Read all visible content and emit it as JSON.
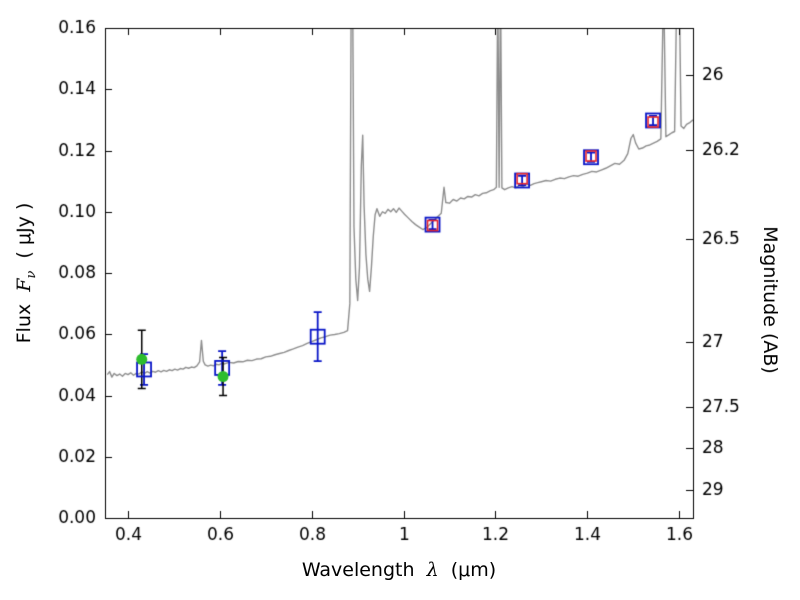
{
  "figure": {
    "xlabel": {
      "word": "Wavelength",
      "symbol": "λ",
      "unit": "(μm)"
    },
    "ylabel_left": {
      "word": "Flux",
      "symbol": "F",
      "sub": "ν",
      "unit": "( μJy )"
    },
    "ylabel_right": "Magnitude (AB)",
    "background": "#ffffff"
  },
  "chart_data": {
    "type": "line",
    "title": "",
    "xlabel": "Wavelength λ (μm)",
    "ylabel": "Flux Fν ( μJy )",
    "y2label": "Magnitude (AB)",
    "xlim": [
      0.35,
      1.63
    ],
    "ylim": [
      0.0,
      0.16
    ],
    "grid": false,
    "legend": "none",
    "x_ticks": {
      "values": [
        0.4,
        0.6,
        0.8,
        1.0,
        1.2,
        1.4,
        1.6
      ],
      "labels": [
        "0.4",
        "0.6",
        "0.8",
        "1",
        "1.2",
        "1.4",
        "1.6"
      ]
    },
    "y_ticks": {
      "values": [
        0.0,
        0.02,
        0.04,
        0.06,
        0.08,
        0.1,
        0.12,
        0.14,
        0.16
      ],
      "labels": [
        "0.00",
        "0.02",
        "0.04",
        "0.06",
        "0.08",
        "0.10",
        "0.12",
        "0.14",
        "0.16"
      ]
    },
    "y2_ticks": {
      "values": [
        26,
        26.2,
        26.5,
        27,
        27.5,
        28,
        29
      ],
      "labels": [
        "26",
        "26.2",
        "26.5",
        "27",
        "27.5",
        "28",
        "29"
      ],
      "ab_zeropoint": 23.9
    },
    "colors": {
      "spectrum": "#8e8e8e",
      "blue": "#0a16c8",
      "red": "#e8262d",
      "green": "#2dbd2d",
      "axis": "#000000",
      "background": "#ffffff"
    },
    "series": [
      {
        "name": "model-spectrum",
        "kind": "line",
        "color": "#8e8e8e",
        "width": 1.4,
        "points": [
          [
            0.355,
            0.0468
          ],
          [
            0.36,
            0.0478
          ],
          [
            0.365,
            0.046
          ],
          [
            0.37,
            0.0472
          ],
          [
            0.376,
            0.0465
          ],
          [
            0.382,
            0.047
          ],
          [
            0.388,
            0.0463
          ],
          [
            0.394,
            0.0472
          ],
          [
            0.4,
            0.0468
          ],
          [
            0.406,
            0.0474
          ],
          [
            0.412,
            0.0466
          ],
          [
            0.418,
            0.0472
          ],
          [
            0.424,
            0.047
          ],
          [
            0.43,
            0.0477
          ],
          [
            0.436,
            0.0472
          ],
          [
            0.442,
            0.0478
          ],
          [
            0.448,
            0.0473
          ],
          [
            0.454,
            0.0479
          ],
          [
            0.46,
            0.0476
          ],
          [
            0.466,
            0.0481
          ],
          [
            0.472,
            0.0477
          ],
          [
            0.478,
            0.0482
          ],
          [
            0.484,
            0.0479
          ],
          [
            0.49,
            0.0484
          ],
          [
            0.496,
            0.0481
          ],
          [
            0.502,
            0.0486
          ],
          [
            0.508,
            0.0483
          ],
          [
            0.514,
            0.0488
          ],
          [
            0.52,
            0.0486
          ],
          [
            0.526,
            0.0492
          ],
          [
            0.532,
            0.0489
          ],
          [
            0.538,
            0.0493
          ],
          [
            0.544,
            0.0491
          ],
          [
            0.55,
            0.0497
          ],
          [
            0.556,
            0.051
          ],
          [
            0.56,
            0.058
          ],
          [
            0.564,
            0.0512
          ],
          [
            0.568,
            0.05
          ],
          [
            0.574,
            0.0496
          ],
          [
            0.58,
            0.0499
          ],
          [
            0.586,
            0.0497
          ],
          [
            0.592,
            0.0502
          ],
          [
            0.598,
            0.05
          ],
          [
            0.604,
            0.0505
          ],
          [
            0.61,
            0.0503
          ],
          [
            0.62,
            0.0508
          ],
          [
            0.63,
            0.0506
          ],
          [
            0.64,
            0.0511
          ],
          [
            0.65,
            0.051
          ],
          [
            0.66,
            0.0515
          ],
          [
            0.67,
            0.0514
          ],
          [
            0.68,
            0.0519
          ],
          [
            0.69,
            0.052
          ],
          [
            0.7,
            0.0526
          ],
          [
            0.71,
            0.0528
          ],
          [
            0.72,
            0.0533
          ],
          [
            0.73,
            0.0537
          ],
          [
            0.74,
            0.0541
          ],
          [
            0.75,
            0.0547
          ],
          [
            0.76,
            0.0552
          ],
          [
            0.77,
            0.0558
          ],
          [
            0.78,
            0.0563
          ],
          [
            0.79,
            0.057
          ],
          [
            0.8,
            0.0576
          ],
          [
            0.81,
            0.0582
          ],
          [
            0.82,
            0.0588
          ],
          [
            0.83,
            0.0592
          ],
          [
            0.84,
            0.0597
          ],
          [
            0.85,
            0.0599
          ],
          [
            0.86,
            0.0602
          ],
          [
            0.87,
            0.0606
          ],
          [
            0.878,
            0.0612
          ],
          [
            0.883,
            0.07
          ],
          [
            0.886,
            0.175
          ],
          [
            0.889,
            0.175
          ],
          [
            0.892,
            0.095
          ],
          [
            0.896,
            0.078
          ],
          [
            0.9,
            0.071
          ],
          [
            0.904,
            0.082
          ],
          [
            0.908,
            0.115
          ],
          [
            0.911,
            0.125
          ],
          [
            0.914,
            0.102
          ],
          [
            0.918,
            0.086
          ],
          [
            0.922,
            0.078
          ],
          [
            0.926,
            0.074
          ],
          [
            0.93,
            0.082
          ],
          [
            0.934,
            0.092
          ],
          [
            0.938,
            0.099
          ],
          [
            0.942,
            0.101
          ],
          [
            0.948,
            0.0985
          ],
          [
            0.954,
            0.1
          ],
          [
            0.96,
            0.0995
          ],
          [
            0.966,
            0.1008
          ],
          [
            0.972,
            0.1
          ],
          [
            0.978,
            0.101
          ],
          [
            0.984,
            0.0998
          ],
          [
            0.99,
            0.1012
          ],
          [
            0.996,
            0.1002
          ],
          [
            1.002,
            0.0992
          ],
          [
            1.01,
            0.098
          ],
          [
            1.018,
            0.0968
          ],
          [
            1.026,
            0.0958
          ],
          [
            1.034,
            0.095
          ],
          [
            1.042,
            0.0942
          ],
          [
            1.05,
            0.0948
          ],
          [
            1.058,
            0.096
          ],
          [
            1.066,
            0.0972
          ],
          [
            1.074,
            0.0984
          ],
          [
            1.082,
            0.0995
          ],
          [
            1.088,
            0.108
          ],
          [
            1.092,
            0.103
          ],
          [
            1.1,
            0.1028
          ],
          [
            1.108,
            0.104
          ],
          [
            1.116,
            0.1035
          ],
          [
            1.124,
            0.1045
          ],
          [
            1.132,
            0.1042
          ],
          [
            1.14,
            0.105
          ],
          [
            1.148,
            0.1048
          ],
          [
            1.156,
            0.1056
          ],
          [
            1.164,
            0.1052
          ],
          [
            1.172,
            0.106
          ],
          [
            1.18,
            0.1062
          ],
          [
            1.188,
            0.1068
          ],
          [
            1.196,
            0.1072
          ],
          [
            1.202,
            0.108
          ],
          [
            1.205,
            0.175
          ],
          [
            1.208,
            0.108
          ],
          [
            1.211,
            0.175
          ],
          [
            1.214,
            0.1078
          ],
          [
            1.22,
            0.1072
          ],
          [
            1.228,
            0.1078
          ],
          [
            1.236,
            0.1082
          ],
          [
            1.244,
            0.1078
          ],
          [
            1.252,
            0.1086
          ],
          [
            1.26,
            0.1082
          ],
          [
            1.268,
            0.109
          ],
          [
            1.276,
            0.1086
          ],
          [
            1.284,
            0.1092
          ],
          [
            1.292,
            0.1095
          ],
          [
            1.3,
            0.1098
          ],
          [
            1.31,
            0.1102
          ],
          [
            1.32,
            0.11
          ],
          [
            1.33,
            0.1106
          ],
          [
            1.34,
            0.111
          ],
          [
            1.35,
            0.1108
          ],
          [
            1.36,
            0.1114
          ],
          [
            1.37,
            0.1118
          ],
          [
            1.38,
            0.1116
          ],
          [
            1.39,
            0.1122
          ],
          [
            1.4,
            0.1126
          ],
          [
            1.41,
            0.1132
          ],
          [
            1.42,
            0.113
          ],
          [
            1.43,
            0.1136
          ],
          [
            1.44,
            0.1142
          ],
          [
            1.45,
            0.115
          ],
          [
            1.46,
            0.1158
          ],
          [
            1.47,
            0.1155
          ],
          [
            1.48,
            0.1168
          ],
          [
            1.488,
            0.119
          ],
          [
            1.495,
            0.124
          ],
          [
            1.5,
            0.1252
          ],
          [
            1.505,
            0.1225
          ],
          [
            1.512,
            0.1205
          ],
          [
            1.52,
            0.1208
          ],
          [
            1.528,
            0.1215
          ],
          [
            1.536,
            0.1218
          ],
          [
            1.544,
            0.1224
          ],
          [
            1.552,
            0.123
          ],
          [
            1.56,
            0.1238
          ],
          [
            1.566,
            0.175
          ],
          [
            1.571,
            0.1245
          ],
          [
            1.578,
            0.1252
          ],
          [
            1.584,
            0.1258
          ],
          [
            1.59,
            0.1262
          ],
          [
            1.595,
            0.175
          ],
          [
            1.6,
            0.175
          ],
          [
            1.604,
            0.128
          ],
          [
            1.61,
            0.1272
          ],
          [
            1.616,
            0.1285
          ],
          [
            1.622,
            0.129
          ],
          [
            1.63,
            0.13
          ]
        ]
      },
      {
        "name": "photometry-blue-squares",
        "kind": "square-open",
        "color": "#0a16c8",
        "err_color": "#0a16c8",
        "size": 14,
        "line_width": 1.8,
        "x": [
          0.435,
          0.605,
          0.813,
          1.063,
          1.258,
          1.408,
          1.543
        ],
        "y": [
          0.0485,
          0.049,
          0.0592,
          0.0958,
          0.1102,
          0.1178,
          0.1298
        ],
        "yerr": [
          0.005,
          0.0055,
          0.008,
          0.0015,
          0.0015,
          0.0015,
          0.0015
        ]
      },
      {
        "name": "photometry-red-squares",
        "kind": "square-open",
        "color": "#e8262d",
        "err_color": "#e8262d",
        "size": 10,
        "line_width": 1.6,
        "x": [
          1.063,
          1.258,
          1.408,
          1.543
        ],
        "y": [
          0.0955,
          0.1108,
          0.1182,
          0.1293
        ],
        "yerr": [
          0,
          0,
          0,
          0
        ]
      },
      {
        "name": "photometry-green-circles",
        "kind": "circle-filled",
        "color": "#2dbd2d",
        "err_color": "#000000",
        "size": 11,
        "line_width": 1.5,
        "x": [
          0.43,
          0.607
        ],
        "y": [
          0.0518,
          0.0462
        ],
        "yerr": [
          0.0095,
          0.0062
        ]
      }
    ]
  }
}
